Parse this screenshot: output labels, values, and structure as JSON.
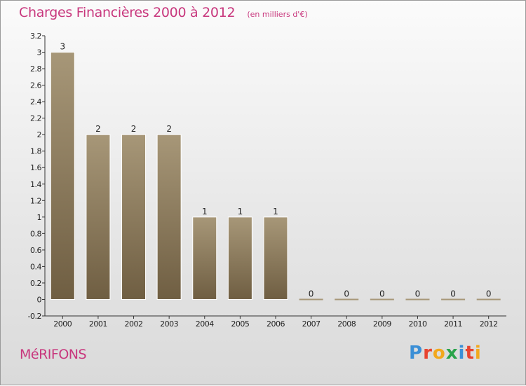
{
  "header": {
    "title": "Charges Financières 2000 à 2012",
    "subtitle": "(en milliers d'€)"
  },
  "footer": {
    "commune": "MéRIFONS",
    "brand_letters": [
      {
        "ch": "P",
        "color": "#3b8fd6"
      },
      {
        "ch": "r",
        "color": "#e8432f"
      },
      {
        "ch": "o",
        "color": "#f2a81d"
      },
      {
        "ch": "x",
        "color": "#2aa34a"
      },
      {
        "ch": "i",
        "color": "#3b8fd6"
      },
      {
        "ch": "t",
        "color": "#e8432f"
      },
      {
        "ch": "i",
        "color": "#f2a81d"
      }
    ]
  },
  "colors": {
    "bar_top": "#a79778",
    "bar_bottom": "#6f5e42",
    "axis": "#333333",
    "text": "#222222",
    "title": "#c8377d"
  },
  "chart_data": {
    "type": "bar",
    "categories": [
      "2000",
      "2001",
      "2002",
      "2003",
      "2004",
      "2005",
      "2006",
      "2007",
      "2008",
      "2009",
      "2010",
      "2011",
      "2012"
    ],
    "values": [
      3,
      2,
      2,
      2,
      1,
      1,
      1,
      0,
      0,
      0,
      0,
      0,
      0
    ],
    "data_labels": [
      "3",
      "2",
      "2",
      "2",
      "1",
      "1",
      "1",
      "0",
      "0",
      "0",
      "0",
      "0",
      "0"
    ],
    "ylim": [
      -0.2,
      3.2
    ],
    "yticks": [
      -0.2,
      0,
      0.2,
      0.4,
      0.6,
      0.8,
      1,
      1.2,
      1.4,
      1.6,
      1.8,
      2,
      2.2,
      2.4,
      2.6,
      2.8,
      3,
      3.2
    ],
    "ytick_labels": [
      "-0.2",
      "0",
      "0.2",
      "0.4",
      "0.6",
      "0.8",
      "1",
      "1.2",
      "1.4",
      "1.6",
      "1.8",
      "2",
      "2.2",
      "2.4",
      "2.6",
      "2.8",
      "3",
      "3.2"
    ],
    "grid": false
  }
}
